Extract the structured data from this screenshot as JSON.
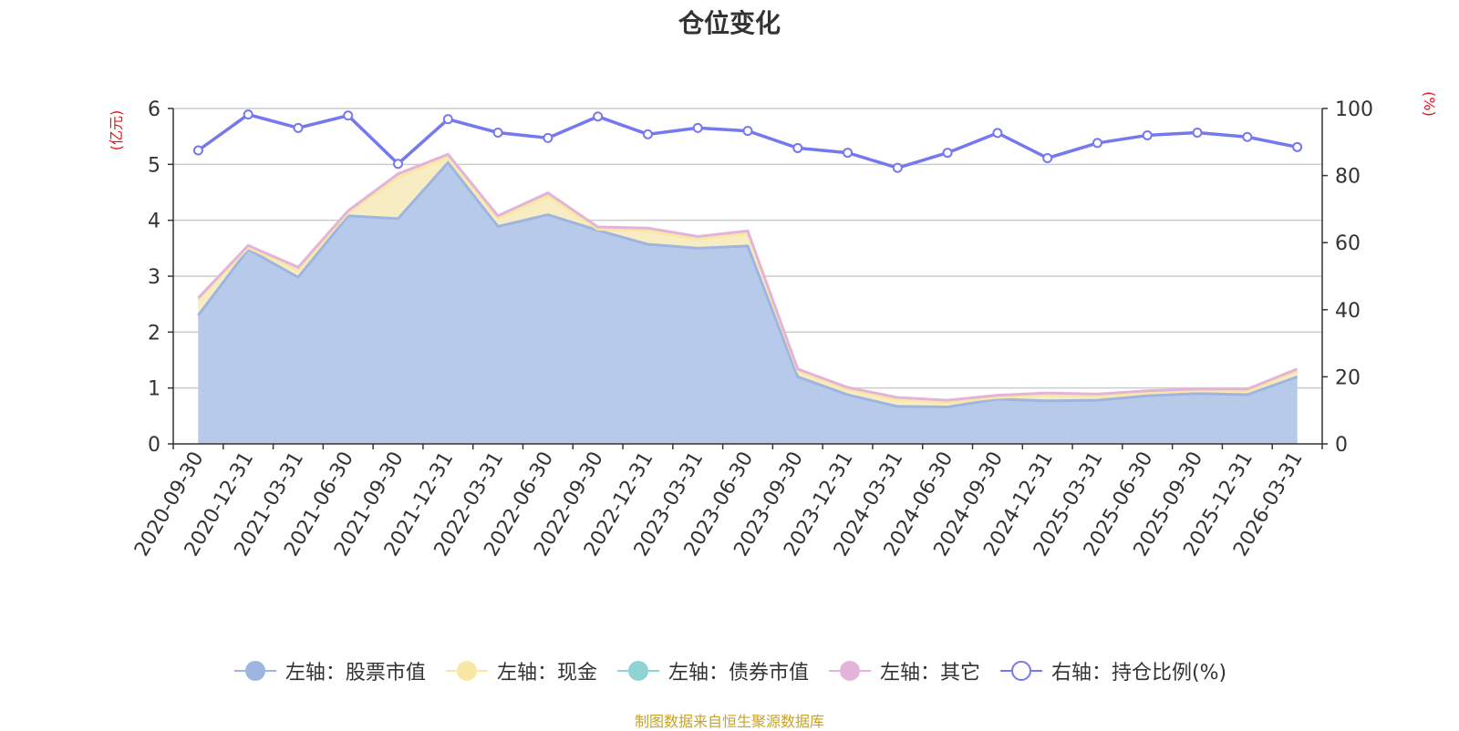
{
  "chart_data": {
    "type": "area",
    "title": "仓位变化",
    "source_text": "制图数据来自恒生聚源数据库",
    "y_left_unit": "(亿元)",
    "y_right_unit": "(%)",
    "ylim_left": [
      0,
      6
    ],
    "ylim_right": [
      0,
      100
    ],
    "y_left_ticks": [
      0,
      1,
      2,
      3,
      4,
      5,
      6
    ],
    "y_right_ticks": [
      0,
      20,
      40,
      60,
      80,
      100
    ],
    "categories": [
      "2020-09-30",
      "2020-12-31",
      "2021-03-31",
      "2021-06-30",
      "2021-09-30",
      "2021-12-31",
      "2022-03-31",
      "2022-06-30",
      "2022-09-30",
      "2022-12-31",
      "2023-03-31",
      "2023-06-30",
      "2023-09-30",
      "2023-12-31",
      "2024-03-31",
      "2024-06-30",
      "2024-09-30",
      "2024-12-31",
      "2025-03-31",
      "2025-06-30",
      "2025-09-30",
      "2025-12-31",
      "2026-03-31"
    ],
    "series": [
      {
        "name": "左轴：股票市值",
        "axis": "left",
        "stack": true,
        "color": "#9db5e0",
        "fill": "#b7cae9",
        "values": [
          2.3,
          3.48,
          2.98,
          4.08,
          4.03,
          5.03,
          3.89,
          4.1,
          3.82,
          3.57,
          3.5,
          3.54,
          1.2,
          0.88,
          0.67,
          0.66,
          0.8,
          0.77,
          0.78,
          0.86,
          0.9,
          0.88,
          1.2
        ]
      },
      {
        "name": "左轴：现金",
        "axis": "left",
        "stack": true,
        "color": "#f8e7a5",
        "fill": "#f8edc2",
        "values": [
          0.28,
          0.03,
          0.13,
          0.05,
          0.74,
          0.1,
          0.14,
          0.33,
          0.02,
          0.24,
          0.16,
          0.22,
          0.1,
          0.09,
          0.12,
          0.08,
          0.03,
          0.1,
          0.07,
          0.05,
          0.05,
          0.06,
          0.1
        ]
      },
      {
        "name": "左轴：债券市值",
        "axis": "left",
        "stack": true,
        "color": "#8fd3d5",
        "fill": "#b5e3e4",
        "values": [
          0,
          0,
          0,
          0,
          0,
          0,
          0,
          0,
          0,
          0,
          0,
          0,
          0,
          0,
          0,
          0,
          0,
          0,
          0,
          0,
          0,
          0,
          0
        ]
      },
      {
        "name": "左轴：其它",
        "axis": "left",
        "stack": true,
        "color": "#e4b3d9",
        "fill": "#f0d3ea",
        "values": [
          0.03,
          0.04,
          0.05,
          0.04,
          0.06,
          0.05,
          0.05,
          0.06,
          0.04,
          0.05,
          0.05,
          0.05,
          0.04,
          0.04,
          0.04,
          0.04,
          0.04,
          0.04,
          0.04,
          0.04,
          0.03,
          0.04,
          0.04
        ]
      },
      {
        "name": "右轴：持仓比例(%)",
        "axis": "right",
        "stack": false,
        "color": "#7578ee",
        "values": [
          87.5,
          98.2,
          94.2,
          97.9,
          83.5,
          96.8,
          92.8,
          91.2,
          97.6,
          92.3,
          94.2,
          93.3,
          88.2,
          86.8,
          82.3,
          86.8,
          92.7,
          85.2,
          89.7,
          92.0,
          92.8,
          91.5,
          88.5
        ]
      }
    ]
  }
}
